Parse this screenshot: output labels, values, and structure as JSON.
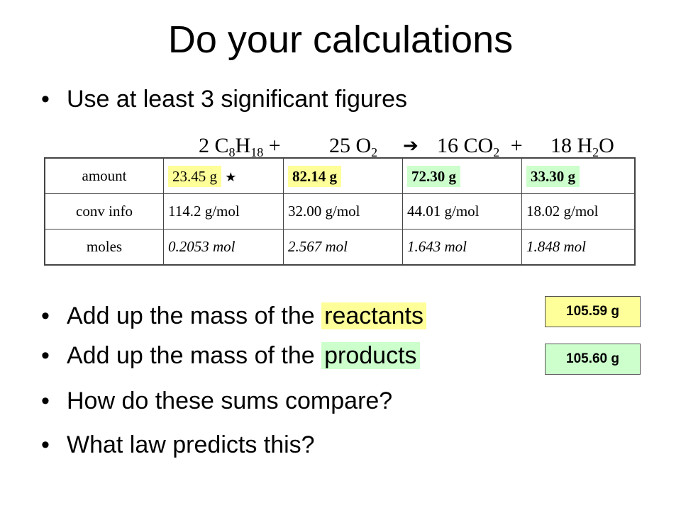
{
  "colors": {
    "yellow_highlight": "#ffff99",
    "green_highlight": "#ccffcc",
    "table_border": "#444444"
  },
  "slide": {
    "title": "Do your calculations",
    "bullet_dot": "•",
    "bullets": {
      "sig_figs": "Use at least 3 significant figures",
      "reactants_prefix": "Add up the mass of the",
      "reactants_word": "reactants",
      "products_prefix": "Add up the mass of the",
      "products_word": "products",
      "compare": "How do these sums compare?",
      "law": "What law predicts this?"
    }
  },
  "equation": {
    "c8h18_coef": "2 C",
    "c8h18_sub1": "8",
    "c8h18_h": "H",
    "c8h18_sub2": "18",
    "plus1": "+",
    "o2_coef": "25 O",
    "o2_sub": "2",
    "arrow": "➔",
    "co2_coef": "16 CO",
    "co2_sub": "2",
    "plus2": "+",
    "h2o_coef": "18 H",
    "h2o_sub": "2",
    "h2o_o": "O"
  },
  "table": {
    "rows": {
      "amount": {
        "label": "amount",
        "values": [
          "23.45 g",
          "82.14 g",
          "72.30 g",
          "33.30 g"
        ],
        "star": "★"
      },
      "conv": {
        "label": "conv info",
        "values": [
          "114.2 g/mol",
          "32.00 g/mol",
          "44.01 g/mol",
          "18.02 g/mol"
        ]
      },
      "moles": {
        "label": "moles",
        "values": [
          "0.2053 mol",
          "2.567 mol",
          "1.643 mol",
          "1.848 mol"
        ]
      }
    }
  },
  "sums": {
    "reactants": "105.59 g",
    "products": "105.60 g"
  }
}
